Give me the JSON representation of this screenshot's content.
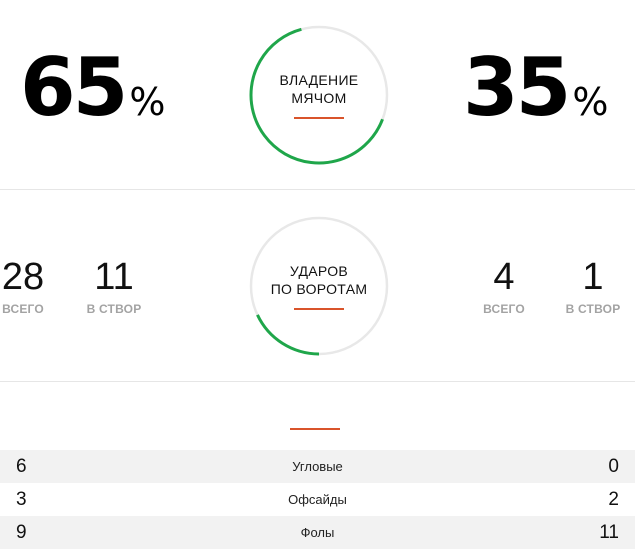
{
  "possession": {
    "home_value": "65",
    "away_value": "35",
    "percent_sign": "%",
    "label_line1": "ВЛАДЕНИЕ",
    "label_line2": "МЯЧОМ",
    "home_fraction": 0.65,
    "accent_color": "#1fa64a",
    "ring_color": "#e8e8e8"
  },
  "shots": {
    "label_line1": "УДАРОВ",
    "label_line2": "ПО ВОРОТАМ",
    "home_total": "28",
    "home_on_target": "11",
    "away_total": "4",
    "away_on_target": "1",
    "total_label": "ВСЕГО",
    "on_target_label": "В СТВОР",
    "away_fraction": 0.18
  },
  "divider_color": "#d9542b",
  "stats": [
    {
      "home": "6",
      "label": "Угловые",
      "away": "0"
    },
    {
      "home": "3",
      "label": "Офсайды",
      "away": "2"
    },
    {
      "home": "9",
      "label": "Фолы",
      "away": "11"
    }
  ]
}
